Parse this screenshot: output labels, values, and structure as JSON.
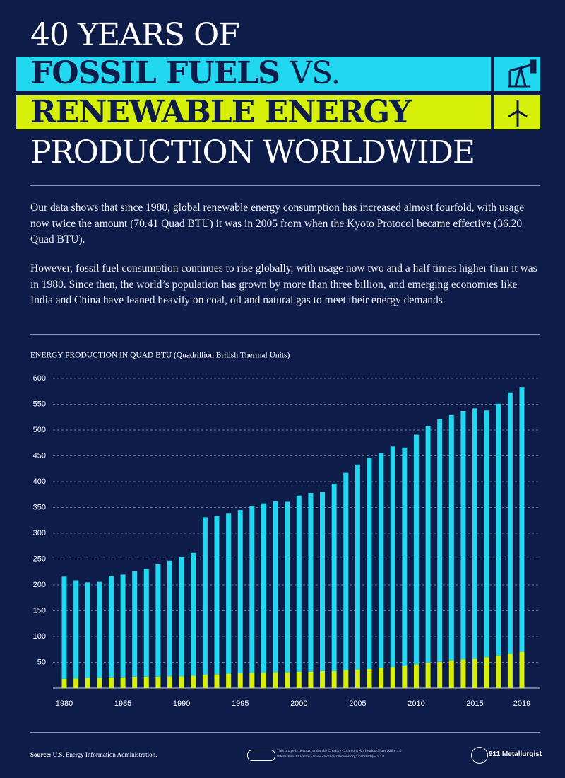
{
  "header": {
    "line1": "40 YEARS OF",
    "line2a": "FOSSIL FUELS",
    "line2b": "VS.",
    "line3": "RENEWABLE ENERGY",
    "line4": "PRODUCTION WORLDWIDE"
  },
  "intro": [
    "Our data shows that since 1980, global renewable energy consumption has increased almost fourfold, with usage now twice the amount (70.41 Quad BTU) it was in 2005 from when the Kyoto Protocol became effective (36.20 Quad BTU).",
    "However, fossil fuel consumption continues to rise globally, with usage now two and a half times higher than it was in 1980. Since then, the world’s population has grown by more than three billion, and emerging economies like India and China have leaned heavily on coal, oil and natural gas to meet their energy demands."
  ],
  "chart_data": {
    "type": "stacked-bar",
    "title": "ENERGY PRODUCTION IN QUAD BTU (Quadrillion British Thermal Units)",
    "categories": [
      "1980",
      null,
      null,
      null,
      null,
      "1985",
      null,
      null,
      null,
      null,
      "1990",
      null,
      null,
      null,
      null,
      "1995",
      null,
      null,
      null,
      null,
      "2000",
      null,
      null,
      null,
      null,
      "2005",
      null,
      null,
      null,
      null,
      "2010",
      null,
      null,
      null,
      null,
      "2015",
      null,
      null,
      null,
      "2019"
    ],
    "series": [
      {
        "color": "#d6f00a",
        "values": [
          18,
          19,
          20,
          20,
          21,
          21,
          22,
          22,
          22,
          23,
          23,
          24,
          26,
          27,
          28,
          29,
          30,
          30,
          31,
          31,
          32,
          32,
          33,
          33,
          35,
          36.2,
          37,
          39,
          41,
          43,
          46,
          49,
          51,
          54,
          56,
          57,
          60,
          63,
          67,
          70.41
        ]
      },
      {
        "color": "#22d8f0",
        "values": [
          198,
          190,
          185,
          186,
          196,
          199,
          204,
          209,
          218,
          224,
          231,
          238,
          305,
          306,
          310,
          316,
          323,
          328,
          331,
          330,
          341,
          346,
          347,
          363,
          382,
          397,
          409,
          416,
          427,
          423,
          445,
          459,
          470,
          475,
          481,
          485,
          478,
          488,
          506,
          513
        ]
      }
    ],
    "ylim": [
      0,
      600
    ],
    "yticks": [
      50,
      100,
      150,
      200,
      250,
      300,
      350,
      400,
      450,
      500,
      550,
      600
    ],
    "grid": true
  },
  "footer": {
    "source_label": "Source:",
    "source": "U.S. Energy Information Administration.",
    "license": "This image is licensed under the Creative Commons Attribution-Share Alike 4.0 International License - www.creativecommons.org/licenses/by-sa/4.0",
    "brand": "911 Metallurgist"
  }
}
